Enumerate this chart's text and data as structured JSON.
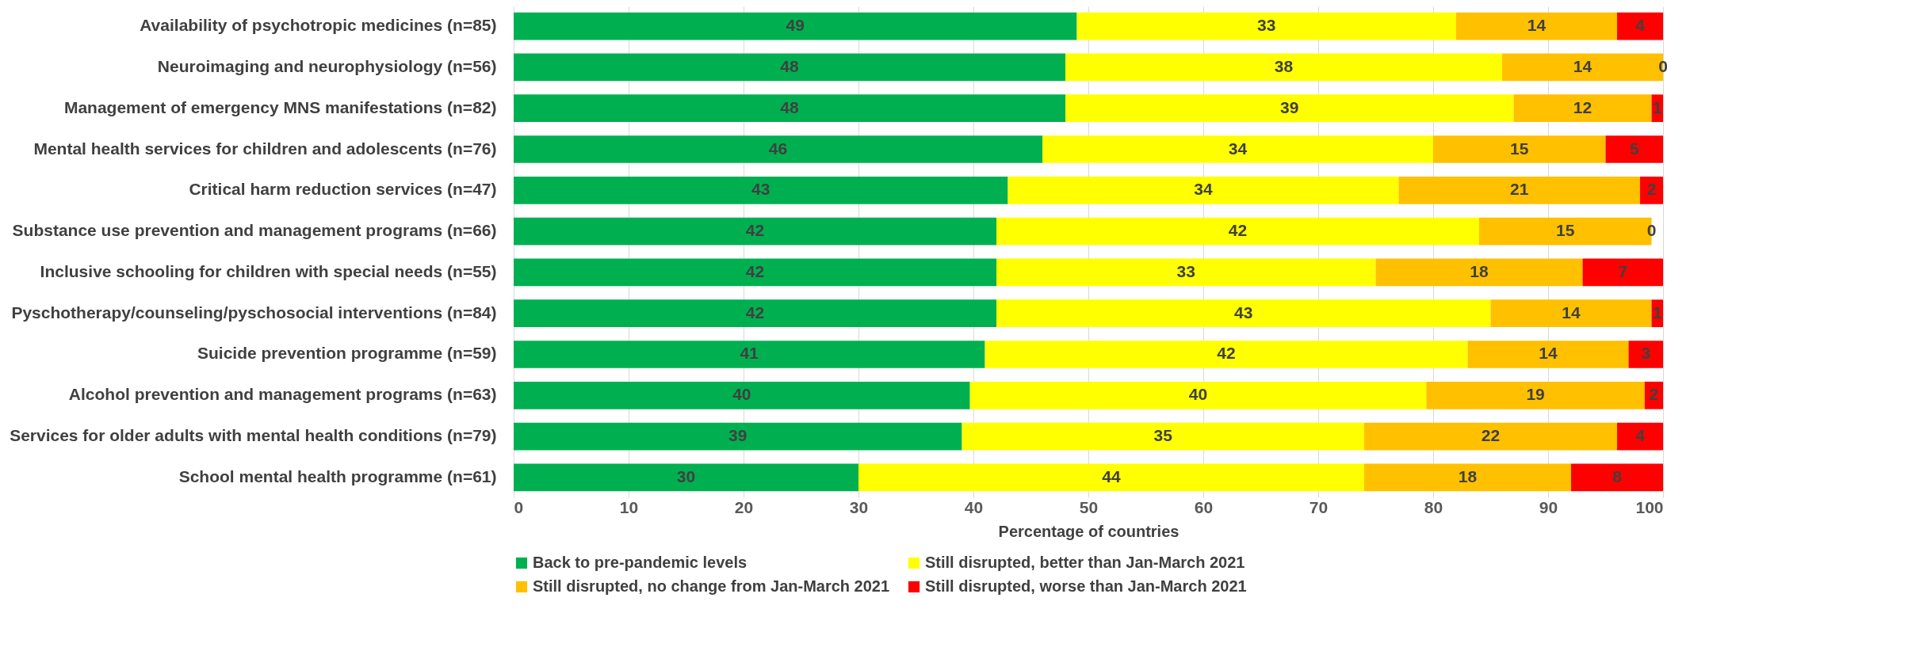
{
  "chart_data": {
    "type": "bar",
    "orientation": "horizontal",
    "stacked": true,
    "grid": "x",
    "legend": "bottom",
    "xlabel": "Percentage of countries",
    "categories": [
      "Availability of psychotropic medicines  (n=85)",
      "Neuroimaging and neurophysiology (n=56)",
      "Management of emergency MNS manifestations (n=82)",
      "Mental health services for children and adolescents  (n=76)",
      "Critical harm reduction services (n=47)",
      "Substance use prevention and management programs  (n=66)",
      "Inclusive schooling for children with special needs (n=55)",
      "Pyschotherapy/counseling/pyschosocial interventions  (n=84)",
      "Suicide prevention programme (n=59)",
      "Alcohol prevention and management programs (n=63)",
      "Services for older adults with mental health conditions (n=79)",
      "School mental health programme (n=61)"
    ],
    "xlim": [
      0,
      100
    ],
    "xticks": [
      0,
      10,
      20,
      30,
      40,
      50,
      60,
      70,
      80,
      90,
      100
    ],
    "series": [
      {
        "name": "Back to pre-pandemic levels",
        "color": "#00b050",
        "values": [
          49,
          48,
          48,
          46,
          43,
          42,
          42,
          42,
          41,
          39.7,
          39,
          30
        ],
        "value_labels": [
          "49",
          "48",
          "48",
          "46",
          "43",
          "42",
          "42",
          "42",
          "41",
          "40",
          "39",
          "30"
        ]
      },
      {
        "name": "Still disrupted, better than Jan-March 2021",
        "color": "#ffff00",
        "values": [
          33,
          38,
          39,
          34,
          34,
          42,
          33,
          43,
          42,
          39.7,
          35,
          44
        ],
        "value_labels": [
          "33",
          "38",
          "39",
          "34",
          "34",
          "42",
          "33",
          "43",
          "42",
          "40",
          "35",
          "44"
        ]
      },
      {
        "name": "Still disrupted, no change from Jan-March 2021",
        "color": "#ffc000",
        "values": [
          14,
          14,
          12,
          15,
          21,
          15,
          18,
          14,
          14,
          19,
          22,
          18
        ],
        "value_labels": [
          "14",
          "14",
          "12",
          "15",
          "21",
          "15",
          "18",
          "14",
          "14",
          "19",
          "22",
          "18"
        ]
      },
      {
        "name": "Still disrupted, worse than Jan-March 2021",
        "color": "#ff0000",
        "values": [
          4,
          0,
          1,
          5,
          2,
          0,
          7,
          1,
          3,
          1.6,
          4,
          8
        ],
        "value_labels": [
          "4",
          "0",
          "1",
          "5",
          "2",
          "0",
          "7",
          "1",
          "3",
          "2",
          "4",
          "8"
        ]
      }
    ]
  }
}
